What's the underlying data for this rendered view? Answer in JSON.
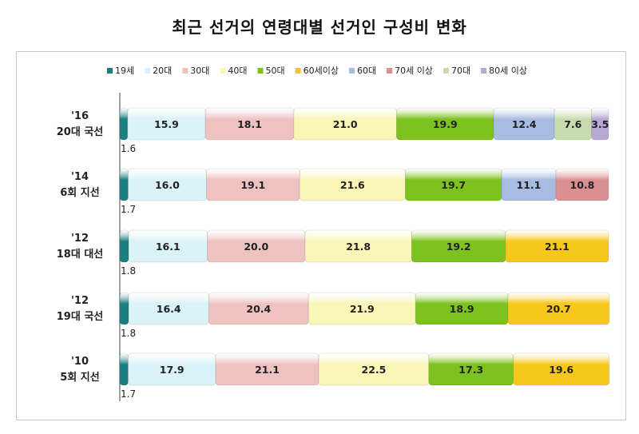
{
  "chart_title": "최근 선거의 연령대별 선거인 구성비 변화",
  "chart_data": {
    "type": "bar",
    "orientation": "horizontal",
    "stacked": true,
    "percent_stacked": true,
    "title": "최근 선거의 연령대별 선거인 구성비 변화",
    "legend_position": "top",
    "grid": false,
    "xlim": [
      0,
      100
    ],
    "categories": [
      {
        "line1": "'16",
        "line2": "20대 국선"
      },
      {
        "line1": "'14",
        "line2": "6회 지선"
      },
      {
        "line1": "'12",
        "line2": "18대 대선"
      },
      {
        "line1": "'12",
        "line2": "19대 국선"
      },
      {
        "line1": "'10",
        "line2": "5회 지선"
      }
    ],
    "series": [
      {
        "name": "19세",
        "color": "#1a7f80",
        "values": [
          1.6,
          1.7,
          1.8,
          1.8,
          1.7
        ]
      },
      {
        "name": "20대",
        "color": "#d9f3f8",
        "values": [
          15.9,
          16.0,
          16.1,
          16.4,
          17.9
        ]
      },
      {
        "name": "30대",
        "color": "#efc2c2",
        "values": [
          18.1,
          19.1,
          20.0,
          20.4,
          21.1
        ]
      },
      {
        "name": "40대",
        "color": "#f9f6b8",
        "values": [
          21.0,
          21.6,
          21.8,
          21.9,
          22.5
        ]
      },
      {
        "name": "50대",
        "color": "#7dc21e",
        "values": [
          19.9,
          19.7,
          19.2,
          18.9,
          17.3
        ]
      },
      {
        "name": "60세이상",
        "color": "#f7c81a",
        "values": [
          null,
          null,
          21.1,
          20.7,
          19.6
        ]
      },
      {
        "name": "60대",
        "color": "#a8bbe0",
        "values": [
          12.4,
          11.1,
          null,
          null,
          null
        ]
      },
      {
        "name": "70세 이상",
        "color": "#d99090",
        "values": [
          null,
          10.8,
          null,
          null,
          null
        ]
      },
      {
        "name": "70대",
        "color": "#c7dcae",
        "values": [
          7.6,
          null,
          null,
          null,
          null
        ]
      },
      {
        "name": "80세 이상",
        "color": "#b8a8d4",
        "values": [
          3.5,
          null,
          null,
          null,
          null
        ]
      }
    ]
  }
}
